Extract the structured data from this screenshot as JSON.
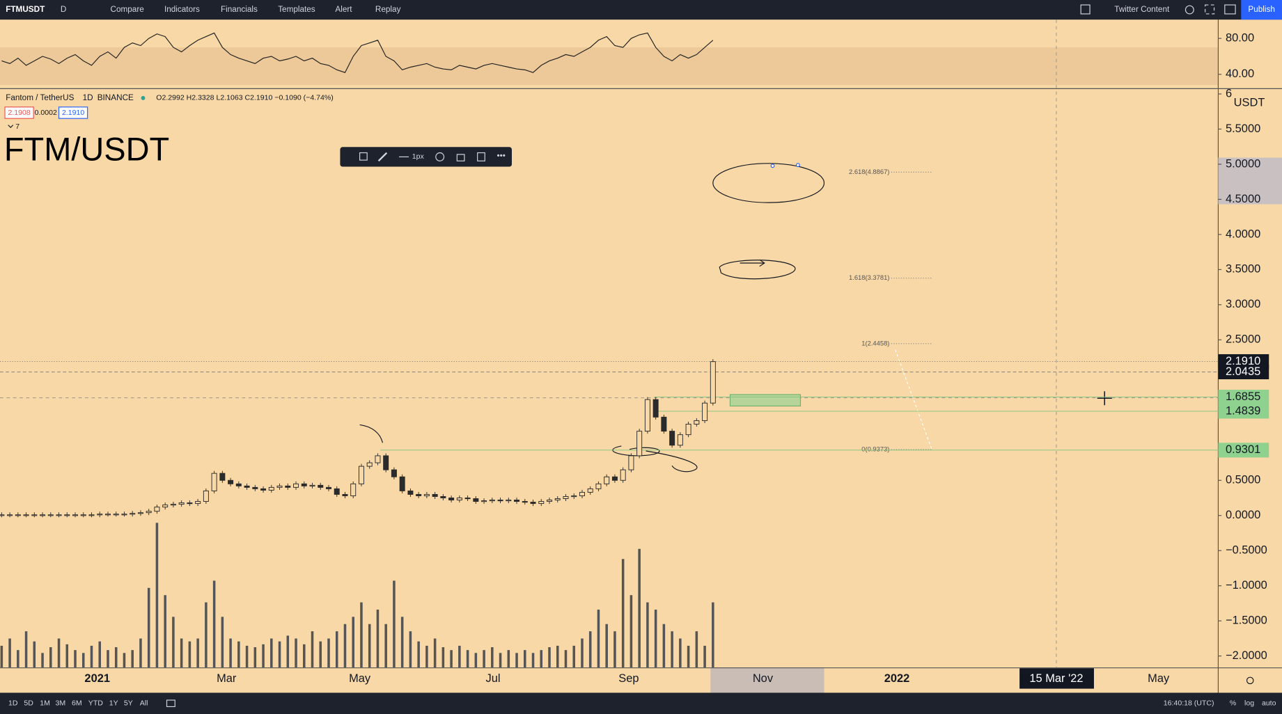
{
  "toolbar": {
    "symbol": "FTMUSDT",
    "interval": "D",
    "items": [
      "Compare",
      "Indicators",
      "Financials",
      "Templates",
      "Alert",
      "Replay"
    ],
    "layout_name": "Twitter Content",
    "publish": "Publish"
  },
  "legend": {
    "name": "Fantom / TetherUS",
    "interval": "1D",
    "exchange": "BINANCE",
    "ohlc": "O2.2992 H2.3328 L2.1063 C2.1910 −0.1090 (−4.74%)",
    "bid": "2.1908",
    "spread": "0.0002",
    "ask": "2.1910",
    "indicators_count": 7
  },
  "title": "FTM/USDT",
  "drawing_toolbar": {
    "width_label": "1px"
  },
  "chart": {
    "type": "candlestick",
    "color": "#2b2b2b",
    "volume_color": "#555555",
    "closes": [
      0.01,
      0.01,
      0.01,
      0.01,
      0.01,
      0.01,
      0.01,
      0.01,
      0.01,
      0.01,
      0.01,
      0.01,
      0.02,
      0.02,
      0.02,
      0.02,
      0.03,
      0.04,
      0.06,
      0.12,
      0.15,
      0.16,
      0.18,
      0.17,
      0.2,
      0.35,
      0.6,
      0.5,
      0.45,
      0.42,
      0.4,
      0.38,
      0.36,
      0.4,
      0.42,
      0.4,
      0.45,
      0.42,
      0.43,
      0.4,
      0.38,
      0.3,
      0.28,
      0.45,
      0.7,
      0.75,
      0.85,
      0.65,
      0.55,
      0.35,
      0.3,
      0.28,
      0.3,
      0.27,
      0.25,
      0.22,
      0.25,
      0.24,
      0.2,
      0.21,
      0.22,
      0.21,
      0.22,
      0.2,
      0.19,
      0.17,
      0.2,
      0.22,
      0.24,
      0.27,
      0.28,
      0.33,
      0.38,
      0.45,
      0.55,
      0.5,
      0.65,
      0.85,
      1.2,
      1.65,
      1.4,
      1.2,
      1.0,
      1.15,
      1.3,
      1.35,
      1.6,
      2.19
    ],
    "volumes": [
      15,
      20,
      12,
      25,
      18,
      10,
      14,
      20,
      16,
      12,
      10,
      15,
      18,
      12,
      14,
      10,
      12,
      20,
      55,
      100,
      50,
      35,
      20,
      18,
      20,
      45,
      60,
      35,
      20,
      18,
      15,
      14,
      16,
      20,
      18,
      22,
      20,
      16,
      25,
      18,
      20,
      25,
      30,
      35,
      45,
      30,
      40,
      30,
      60,
      35,
      25,
      18,
      15,
      20,
      14,
      12,
      15,
      12,
      10,
      12,
      14,
      10,
      12,
      10,
      12,
      10,
      12,
      14,
      15,
      12,
      15,
      20,
      25,
      40,
      30,
      25,
      75,
      50,
      82,
      45,
      40,
      30,
      25,
      20,
      15,
      25,
      15,
      45
    ],
    "rsi": [
      55,
      52,
      58,
      50,
      55,
      60,
      57,
      52,
      58,
      62,
      55,
      50,
      60,
      65,
      58,
      70,
      75,
      72,
      80,
      85,
      82,
      70,
      65,
      72,
      78,
      82,
      86,
      70,
      62,
      58,
      55,
      52,
      58,
      60,
      55,
      57,
      60,
      55,
      58,
      52,
      50,
      45,
      42,
      60,
      72,
      75,
      78,
      60,
      55,
      45,
      48,
      50,
      52,
      48,
      46,
      45,
      50,
      48,
      46,
      50,
      52,
      50,
      48,
      46,
      45,
      42,
      50,
      55,
      58,
      62,
      60,
      65,
      70,
      78,
      82,
      72,
      70,
      80,
      84,
      86,
      70,
      60,
      55,
      62,
      58,
      62,
      70,
      78
    ],
    "rsi_yticks": [
      {
        "value": 80,
        "label": "80.00"
      },
      {
        "value": 40,
        "label": "40.00"
      }
    ],
    "unit": "USDT",
    "yticks": [
      6,
      {
        "value": 5.5,
        "label": "5.5000"
      },
      {
        "value": 5,
        "label": "5.0000"
      },
      {
        "value": 4.5,
        "label": "4.5000"
      },
      {
        "value": 4,
        "label": "4.0000"
      },
      {
        "value": 3.5,
        "label": "3.5000"
      },
      {
        "value": 3,
        "label": "3.0000"
      },
      {
        "value": 2.5,
        "label": "2.5000"
      },
      {
        "value": 0.5,
        "label": "0.5000"
      },
      {
        "value": 0,
        "label": "0.0000"
      },
      {
        "value": -0.5,
        "label": "−0.5000"
      },
      {
        "value": -1,
        "label": "−1.0000"
      },
      {
        "value": -1.5,
        "label": "−1.5000"
      },
      {
        "value": -2,
        "label": "−2.0000"
      }
    ],
    "xticks": [
      "2021",
      "Mar",
      "May",
      "Jul",
      "Sep",
      "Nov",
      "2022",
      "May"
    ],
    "crosshair_date": "15 Mar '22",
    "fib_levels": [
      {
        "value": 4.8867,
        "label": "2.618(4.8867)"
      },
      {
        "value": 3.3781,
        "label": "1.618(3.3781)"
      },
      {
        "value": 2.4458,
        "label": "1(2.4458)"
      },
      {
        "value": 0.9373,
        "label": "0(0.9373)"
      }
    ],
    "price_badges": [
      {
        "value": 2.191,
        "label": "2.1910",
        "color": "#131722",
        "text_color": "#ffffff"
      },
      {
        "value": 2.0435,
        "label": "2.0435",
        "color": "#131722",
        "text_color": "#ffffff"
      },
      {
        "value": 1.6855,
        "label": "1.6855",
        "color": "#8fd18f",
        "text_color": "#131722"
      },
      {
        "value": 1.4839,
        "label": "1.4839",
        "color": "#8fd18f",
        "text_color": "#131722"
      },
      {
        "value": 0.9301,
        "label": "0.9301",
        "color": "#8fd18f",
        "text_color": "#131722"
      }
    ]
  },
  "bottom_bar": {
    "ranges": [
      "1D",
      "5D",
      "1M",
      "3M",
      "6M",
      "YTD",
      "1Y",
      "5Y",
      "All"
    ],
    "clock": "16:40:18 (UTC)",
    "percent": "%",
    "log": "log",
    "auto": "auto"
  }
}
